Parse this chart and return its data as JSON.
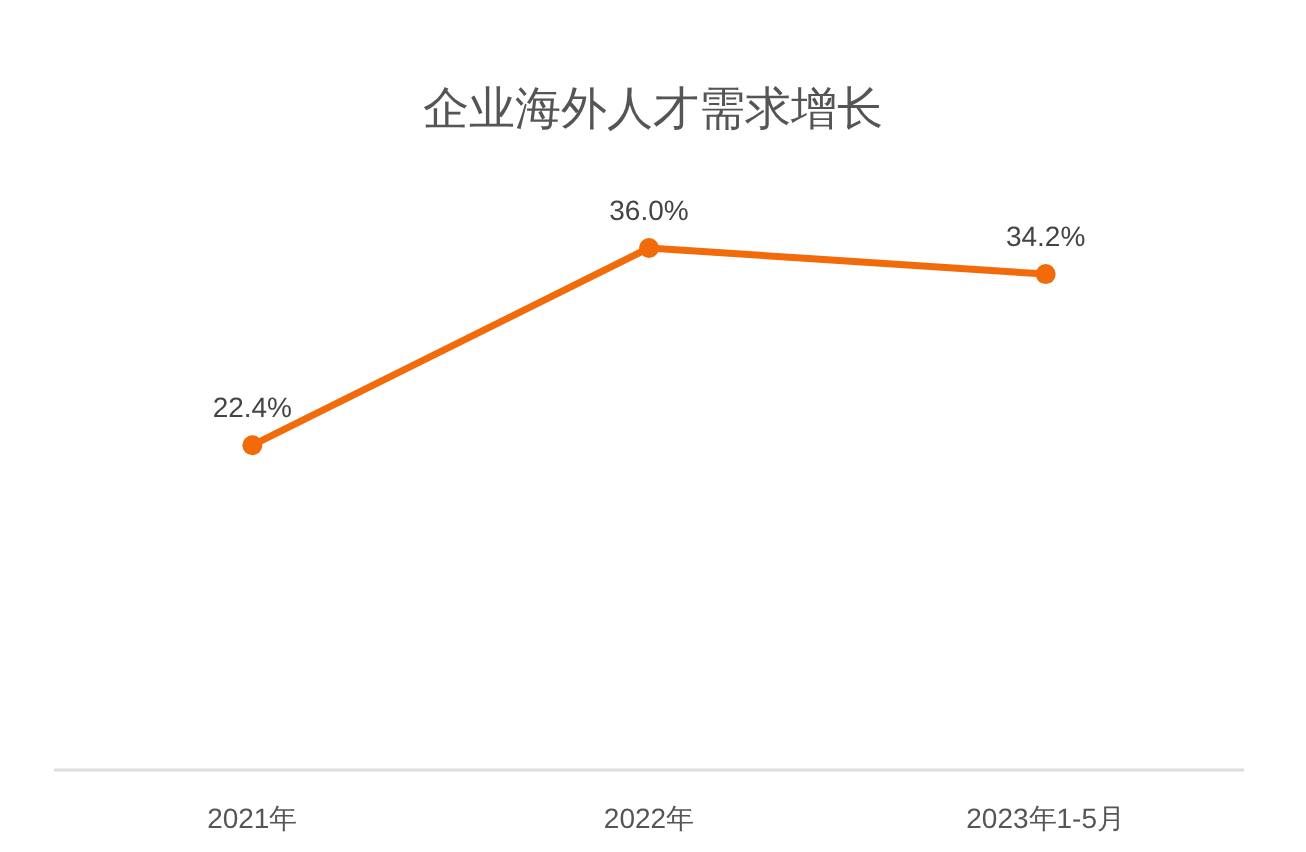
{
  "chart_data": {
    "type": "line",
    "title": "企业海外人才需求增长",
    "categories": [
      "2021年",
      "2022年",
      "2023年1-5月"
    ],
    "series": [
      {
        "color": "#f26b0a",
        "values": [
          22.4,
          36.0,
          34.2
        ],
        "value_labels": [
          "22.4%",
          "36.0%",
          "34.2%"
        ]
      }
    ],
    "marker": "circle"
  }
}
